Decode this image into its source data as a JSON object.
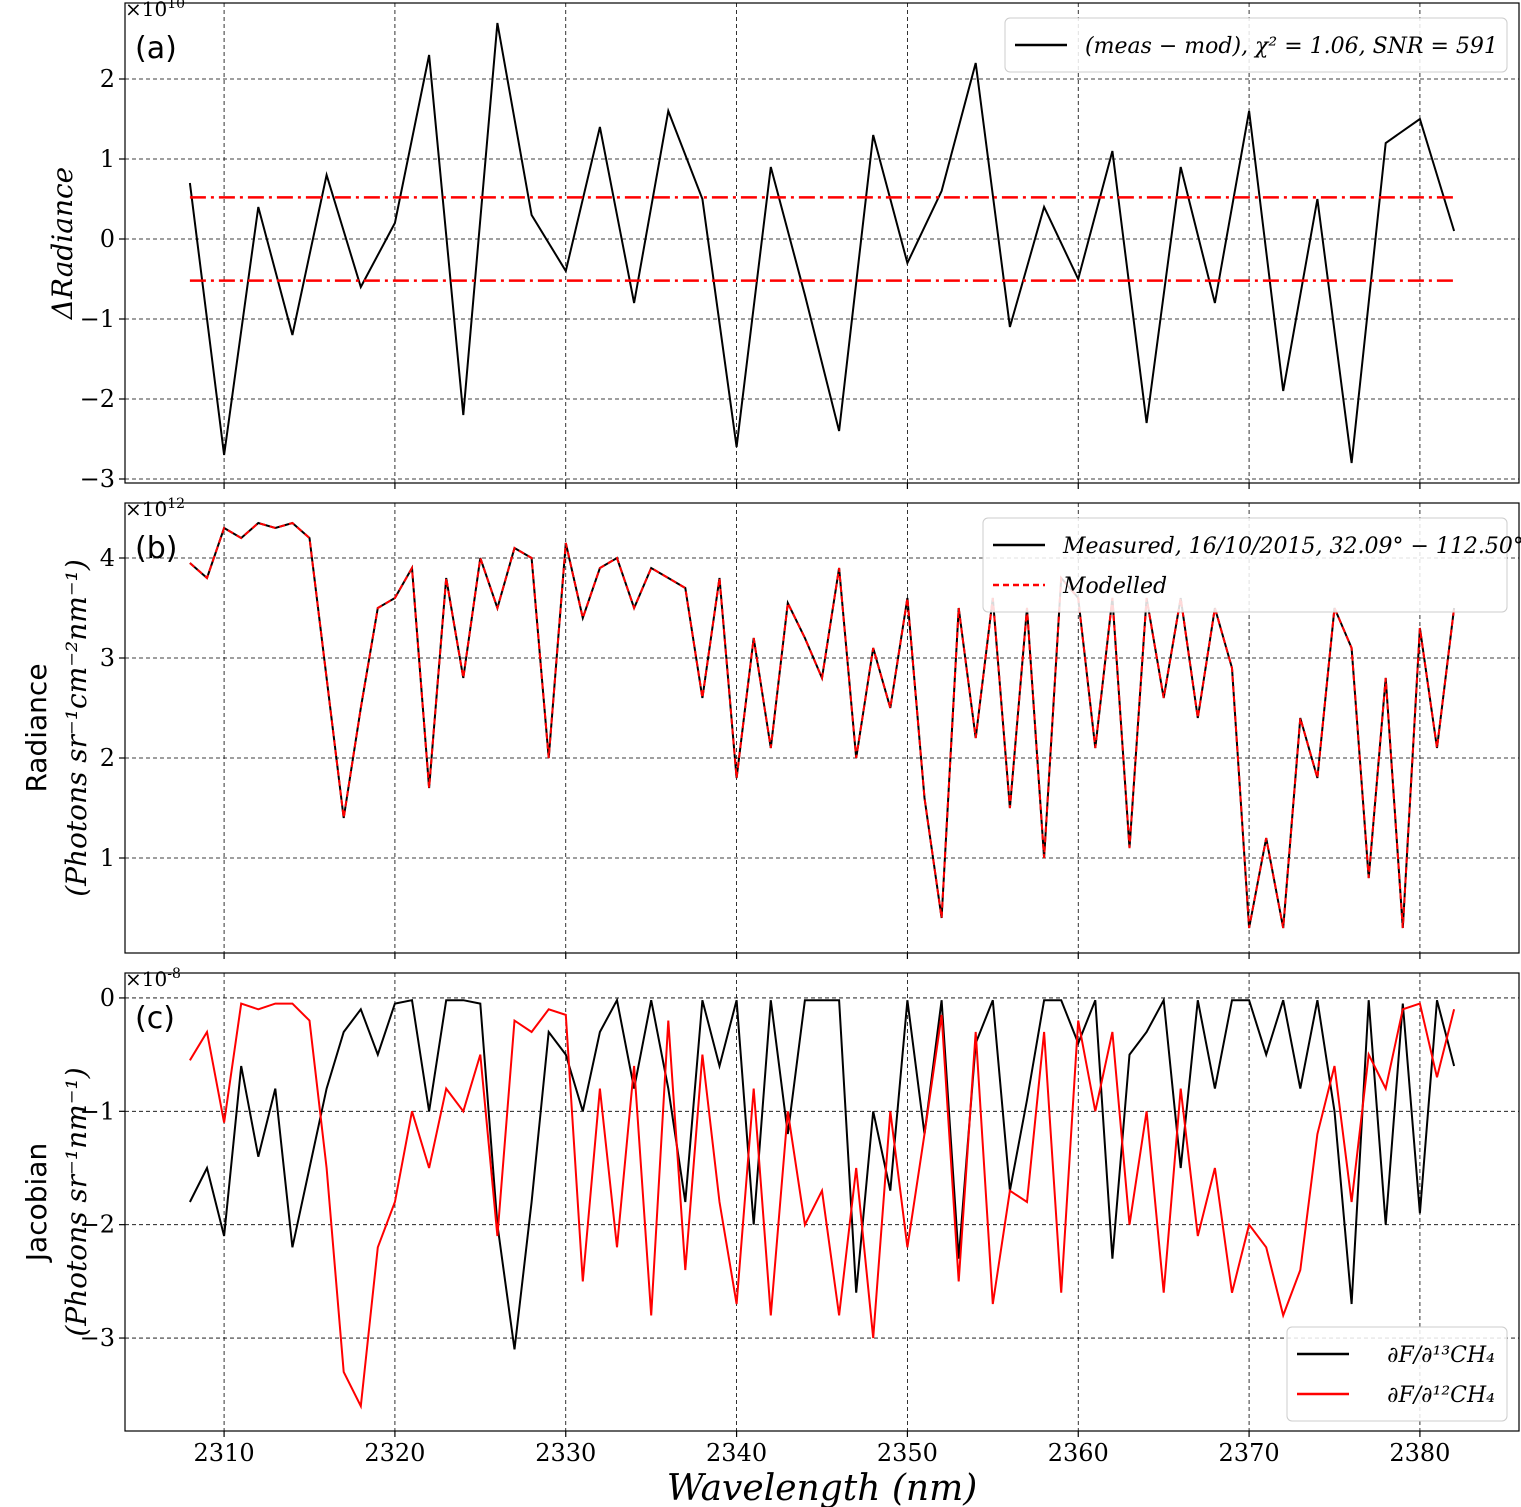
{
  "chart_data": [
    {
      "type": "line",
      "panel_label": "(a)",
      "ylabel": "ΔRadiance",
      "y_offset": "×10^10",
      "ylim": [
        -3.05,
        2.95
      ],
      "yticks": [
        -3,
        -2,
        -1,
        0,
        1,
        2
      ],
      "yticklabels": [
        "−3",
        "−2",
        "−1",
        "0",
        "1",
        "2"
      ],
      "grid": true,
      "legend_position": "top-right",
      "series": [
        {
          "name": "(meas − mod), χ² = 1.06, SNR = 591",
          "color": "#000000",
          "style": "solid",
          "x": [
            2308,
            2310,
            2312,
            2314,
            2316,
            2318,
            2320,
            2322,
            2324,
            2326,
            2328,
            2330,
            2332,
            2334,
            2336,
            2338,
            2340,
            2342,
            2344,
            2346,
            2348,
            2350,
            2352,
            2354,
            2356,
            2358,
            2360,
            2362,
            2364,
            2366,
            2368,
            2370,
            2372,
            2374,
            2376,
            2378,
            2380,
            2382
          ],
          "values": [
            0.7,
            -2.7,
            0.4,
            -1.2,
            0.8,
            -0.6,
            0.2,
            2.3,
            -2.2,
            2.7,
            0.3,
            -0.4,
            1.4,
            -0.8,
            1.6,
            0.5,
            -2.6,
            0.9,
            -0.7,
            -2.4,
            1.3,
            -0.3,
            0.6,
            2.2,
            -1.1,
            0.4,
            -0.5,
            1.1,
            -2.3,
            0.9,
            -0.8,
            1.6,
            -1.9,
            0.5,
            -2.8,
            1.2,
            1.5,
            0.1
          ]
        },
        {
          "name": "",
          "color": "#ff0000",
          "style": "dashdot",
          "x": [
            2308,
            2382
          ],
          "values": [
            0.52,
            0.52
          ]
        },
        {
          "name": "",
          "color": "#ff0000",
          "style": "dashdot",
          "x": [
            2308,
            2382
          ],
          "values": [
            -0.52,
            -0.52
          ]
        }
      ]
    },
    {
      "type": "line",
      "panel_label": "(b)",
      "ylabel": "Radiance",
      "ylabel_units": "(Photons sr⁻¹cm⁻²nm⁻¹)",
      "y_offset": "×10^12",
      "ylim": [
        0.05,
        4.55
      ],
      "yticks": [
        1,
        2,
        3,
        4
      ],
      "yticklabels": [
        "1",
        "2",
        "3",
        "4"
      ],
      "grid": true,
      "legend_position": "top-right",
      "series": [
        {
          "name": "Measured, 16/10/2015, 32.09° − 112.50°",
          "color": "#000000",
          "style": "solid",
          "x": [
            2308,
            2309,
            2310,
            2311,
            2312,
            2313,
            2314,
            2315,
            2316,
            2317,
            2318,
            2319,
            2320,
            2321,
            2322,
            2323,
            2324,
            2325,
            2326,
            2327,
            2328,
            2329,
            2330,
            2331,
            2332,
            2333,
            2334,
            2335,
            2336,
            2337,
            2338,
            2339,
            2340,
            2341,
            2342,
            2343,
            2344,
            2345,
            2346,
            2347,
            2348,
            2349,
            2350,
            2351,
            2352,
            2353,
            2354,
            2355,
            2356,
            2357,
            2358,
            2359,
            2360,
            2361,
            2362,
            2363,
            2364,
            2365,
            2366,
            2367,
            2368,
            2369,
            2370,
            2371,
            2372,
            2373,
            2374,
            2375,
            2376,
            2377,
            2378,
            2379,
            2380,
            2381,
            2382
          ],
          "values": [
            3.95,
            3.8,
            4.3,
            4.2,
            4.35,
            4.3,
            4.35,
            4.2,
            2.8,
            1.4,
            2.5,
            3.5,
            3.6,
            3.9,
            1.7,
            3.8,
            2.8,
            4.0,
            3.5,
            4.1,
            4.0,
            2.0,
            4.15,
            3.4,
            3.9,
            4.0,
            3.5,
            3.9,
            3.8,
            3.7,
            2.6,
            3.8,
            1.8,
            3.2,
            2.1,
            3.55,
            3.2,
            2.8,
            3.9,
            2.0,
            3.1,
            2.5,
            3.6,
            1.6,
            0.4,
            3.5,
            2.2,
            3.6,
            1.5,
            3.5,
            1.0,
            3.8,
            3.6,
            2.1,
            3.6,
            1.1,
            3.6,
            2.6,
            3.6,
            2.4,
            3.5,
            2.9,
            0.3,
            1.2,
            0.3,
            2.4,
            1.8,
            3.5,
            3.1,
            0.8,
            2.8,
            0.3,
            3.3,
            2.1,
            3.5
          ]
        },
        {
          "name": "Modelled",
          "color": "#ff0000",
          "style": "dashed",
          "x": [
            2308,
            2309,
            2310,
            2311,
            2312,
            2313,
            2314,
            2315,
            2316,
            2317,
            2318,
            2319,
            2320,
            2321,
            2322,
            2323,
            2324,
            2325,
            2326,
            2327,
            2328,
            2329,
            2330,
            2331,
            2332,
            2333,
            2334,
            2335,
            2336,
            2337,
            2338,
            2339,
            2340,
            2341,
            2342,
            2343,
            2344,
            2345,
            2346,
            2347,
            2348,
            2349,
            2350,
            2351,
            2352,
            2353,
            2354,
            2355,
            2356,
            2357,
            2358,
            2359,
            2360,
            2361,
            2362,
            2363,
            2364,
            2365,
            2366,
            2367,
            2368,
            2369,
            2370,
            2371,
            2372,
            2373,
            2374,
            2375,
            2376,
            2377,
            2378,
            2379,
            2380,
            2381,
            2382
          ],
          "values": [
            3.95,
            3.8,
            4.3,
            4.2,
            4.35,
            4.3,
            4.35,
            4.2,
            2.8,
            1.4,
            2.5,
            3.5,
            3.6,
            3.9,
            1.7,
            3.8,
            2.8,
            4.0,
            3.5,
            4.1,
            4.0,
            2.0,
            4.15,
            3.4,
            3.9,
            4.0,
            3.5,
            3.9,
            3.8,
            3.7,
            2.6,
            3.8,
            1.8,
            3.2,
            2.1,
            3.55,
            3.2,
            2.8,
            3.9,
            2.0,
            3.1,
            2.5,
            3.6,
            1.6,
            0.4,
            3.5,
            2.2,
            3.6,
            1.5,
            3.5,
            1.0,
            3.8,
            3.6,
            2.1,
            3.6,
            1.1,
            3.6,
            2.6,
            3.6,
            2.4,
            3.5,
            2.9,
            0.3,
            1.2,
            0.3,
            2.4,
            1.8,
            3.5,
            3.1,
            0.8,
            2.8,
            0.3,
            3.3,
            2.1,
            3.5
          ]
        }
      ]
    },
    {
      "type": "line",
      "panel_label": "(c)",
      "ylabel": "Jacobian",
      "ylabel_units": "(Photons sr⁻¹nm⁻¹)",
      "y_offset": "×10^-8",
      "ylim": [
        -3.82,
        0.22
      ],
      "yticks": [
        -3,
        -2,
        -1,
        0
      ],
      "yticklabels": [
        "−3",
        "−2",
        "−1",
        "0"
      ],
      "xlabel": "Wavelength (nm)",
      "xlim": [
        2304.2,
        2385.8
      ],
      "xticks": [
        2310,
        2320,
        2330,
        2340,
        2350,
        2360,
        2370,
        2380
      ],
      "grid": true,
      "legend_position": "bottom-right",
      "series": [
        {
          "name": "∂F/∂¹³CH₄",
          "color": "#000000",
          "style": "solid",
          "x": [
            2308,
            2309,
            2310,
            2311,
            2312,
            2313,
            2314,
            2315,
            2316,
            2317,
            2318,
            2319,
            2320,
            2321,
            2322,
            2323,
            2324,
            2325,
            2326,
            2327,
            2328,
            2329,
            2330,
            2331,
            2332,
            2333,
            2334,
            2335,
            2336,
            2337,
            2338,
            2339,
            2340,
            2341,
            2342,
            2343,
            2344,
            2345,
            2346,
            2347,
            2348,
            2349,
            2350,
            2351,
            2352,
            2353,
            2354,
            2355,
            2356,
            2357,
            2358,
            2359,
            2360,
            2361,
            2362,
            2363,
            2364,
            2365,
            2366,
            2367,
            2368,
            2369,
            2370,
            2371,
            2372,
            2373,
            2374,
            2375,
            2376,
            2377,
            2378,
            2379,
            2380,
            2381,
            2382
          ],
          "values": [
            -1.8,
            -1.5,
            -2.1,
            -0.6,
            -1.4,
            -0.8,
            -2.2,
            -1.5,
            -0.8,
            -0.3,
            -0.1,
            -0.5,
            -0.05,
            -0.02,
            -1.0,
            -0.02,
            -0.02,
            -0.05,
            -2.0,
            -3.1,
            -1.8,
            -0.3,
            -0.5,
            -1.0,
            -0.3,
            -0.02,
            -0.8,
            -0.02,
            -0.8,
            -1.8,
            -0.02,
            -0.6,
            -0.02,
            -2.0,
            -0.02,
            -1.2,
            -0.02,
            -0.02,
            -0.02,
            -2.6,
            -1.0,
            -1.7,
            -0.02,
            -1.2,
            -0.02,
            -2.3,
            -0.4,
            -0.02,
            -1.7,
            -0.9,
            -0.02,
            -0.02,
            -0.4,
            -0.02,
            -2.3,
            -0.5,
            -0.3,
            -0.02,
            -1.5,
            -0.02,
            -0.8,
            -0.02,
            -0.02,
            -0.5,
            -0.02,
            -0.8,
            -0.02,
            -1.0,
            -2.7,
            -0.02,
            -2.0,
            -0.05,
            -1.9,
            -0.02,
            -0.6
          ]
        },
        {
          "name": "∂F/∂¹²CH₄",
          "color": "#ff0000",
          "style": "solid",
          "x": [
            2308,
            2309,
            2310,
            2311,
            2312,
            2313,
            2314,
            2315,
            2316,
            2317,
            2318,
            2319,
            2320,
            2321,
            2322,
            2323,
            2324,
            2325,
            2326,
            2327,
            2328,
            2329,
            2330,
            2331,
            2332,
            2333,
            2334,
            2335,
            2336,
            2337,
            2338,
            2339,
            2340,
            2341,
            2342,
            2343,
            2344,
            2345,
            2346,
            2347,
            2348,
            2349,
            2350,
            2351,
            2352,
            2353,
            2354,
            2355,
            2356,
            2357,
            2358,
            2359,
            2360,
            2361,
            2362,
            2363,
            2364,
            2365,
            2366,
            2367,
            2368,
            2369,
            2370,
            2371,
            2372,
            2373,
            2374,
            2375,
            2376,
            2377,
            2378,
            2379,
            2380,
            2381,
            2382
          ],
          "values": [
            -0.55,
            -0.3,
            -1.1,
            -0.05,
            -0.1,
            -0.05,
            -0.05,
            -0.2,
            -1.5,
            -3.3,
            -3.6,
            -2.2,
            -1.8,
            -1.0,
            -1.5,
            -0.8,
            -1.0,
            -0.5,
            -2.1,
            -0.2,
            -0.3,
            -0.1,
            -0.15,
            -2.5,
            -0.8,
            -2.2,
            -0.6,
            -2.8,
            -0.2,
            -2.4,
            -0.5,
            -1.8,
            -2.7,
            -0.8,
            -2.8,
            -1.0,
            -2.0,
            -1.7,
            -2.8,
            -1.5,
            -3.0,
            -1.0,
            -2.2,
            -1.2,
            -0.15,
            -2.5,
            -0.3,
            -2.7,
            -1.7,
            -1.8,
            -0.3,
            -2.6,
            -0.2,
            -1.0,
            -0.3,
            -2.0,
            -1.0,
            -2.6,
            -0.8,
            -2.1,
            -1.5,
            -2.6,
            -2.0,
            -2.2,
            -2.8,
            -2.4,
            -1.2,
            -0.6,
            -1.8,
            -0.5,
            -0.8,
            -0.1,
            -0.05,
            -0.7,
            -0.1
          ]
        }
      ]
    }
  ]
}
